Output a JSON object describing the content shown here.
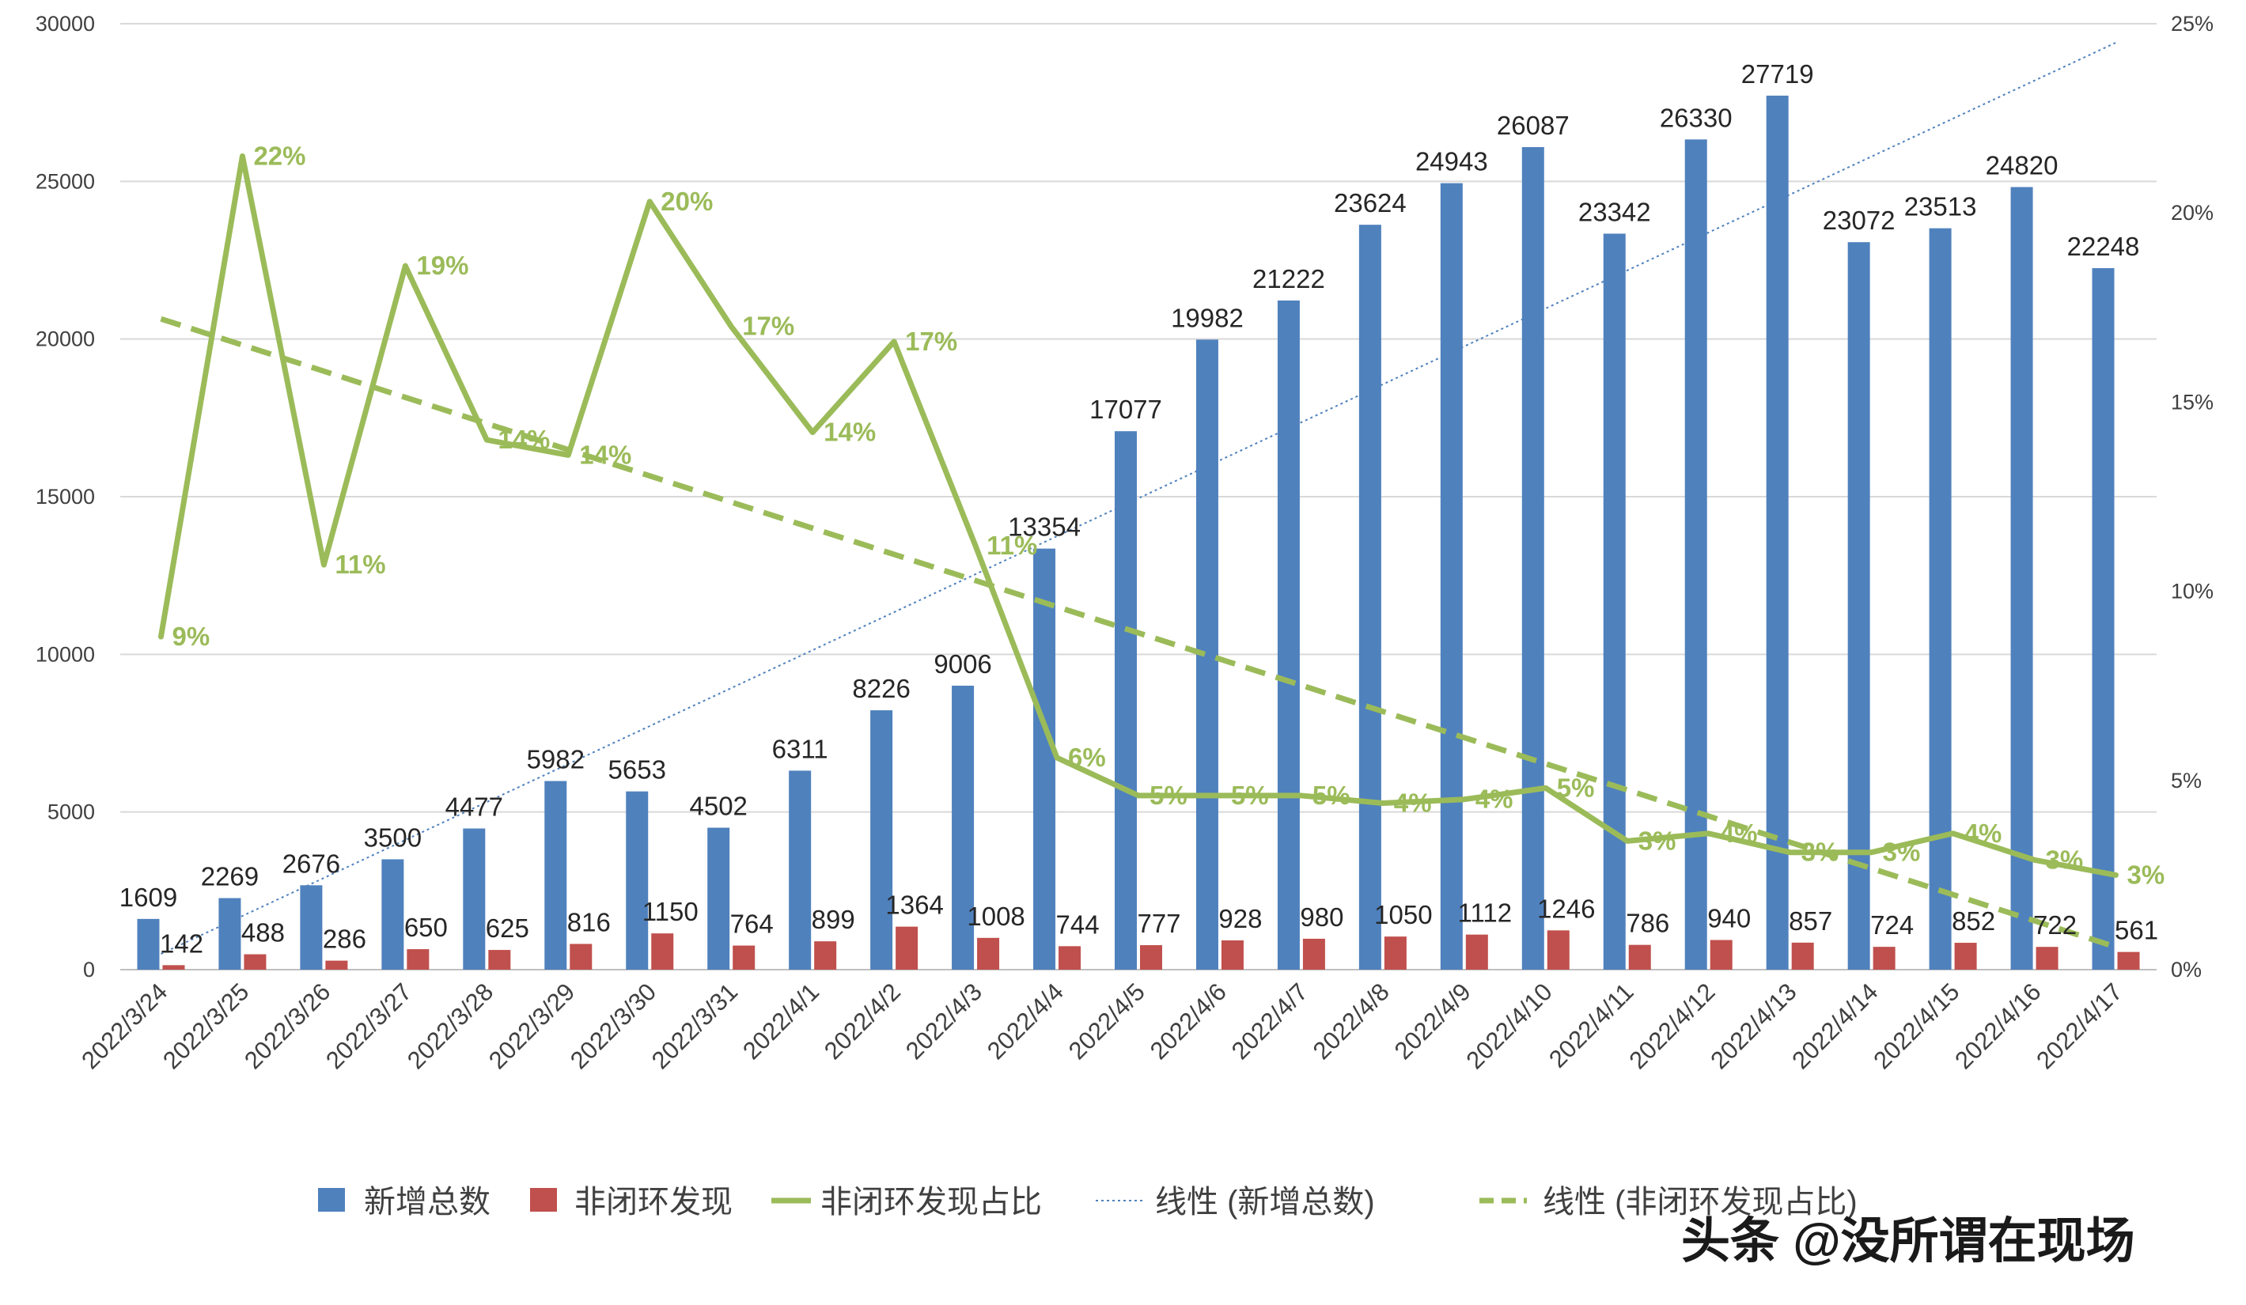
{
  "chart_data": {
    "type": "bar",
    "categories": [
      "2022/3/24",
      "2022/3/25",
      "2022/3/26",
      "2022/3/27",
      "2022/3/28",
      "2022/3/29",
      "2022/3/30",
      "2022/3/31",
      "2022/4/1",
      "2022/4/2",
      "2022/4/3",
      "2022/4/4",
      "2022/4/5",
      "2022/4/6",
      "2022/4/7",
      "2022/4/8",
      "2022/4/9",
      "2022/4/10",
      "2022/4/11",
      "2022/4/12",
      "2022/4/13",
      "2022/4/14",
      "2022/4/15",
      "2022/4/16",
      "2022/4/17"
    ],
    "series": [
      {
        "name": "新增总数",
        "kind": "bar",
        "axis": "left",
        "color": "#4f81bd",
        "values": [
          1609,
          2269,
          2676,
          3500,
          4477,
          5982,
          5653,
          4502,
          6311,
          8226,
          9006,
          13354,
          17077,
          19982,
          21222,
          23624,
          24943,
          26087,
          23342,
          26330,
          27719,
          23072,
          23513,
          24820,
          22248
        ]
      },
      {
        "name": "非闭环发现",
        "kind": "bar",
        "axis": "left",
        "color": "#c0504d",
        "values": [
          142,
          488,
          286,
          650,
          625,
          816,
          1150,
          764,
          899,
          1364,
          1008,
          744,
          777,
          928,
          980,
          1050,
          1112,
          1246,
          786,
          940,
          857,
          724,
          852,
          722,
          561
        ]
      },
      {
        "name": "非闭环发现占比",
        "kind": "line",
        "axis": "right",
        "color": "#9bbb59",
        "values": [
          8.8,
          21.5,
          10.7,
          18.6,
          14.0,
          13.6,
          20.3,
          17.0,
          14.2,
          16.6,
          11.2,
          5.6,
          4.6,
          4.6,
          4.6,
          4.4,
          4.5,
          4.8,
          3.4,
          3.6,
          3.1,
          3.1,
          3.6,
          2.9,
          2.5
        ],
        "labels": [
          "9%",
          "22%",
          "11%",
          "19%",
          "14%",
          "14%",
          "20%",
          "17%",
          "14%",
          "17%",
          "11%",
          "6%",
          "5%",
          "5%",
          "5%",
          "4%",
          "4%",
          "5%",
          "3%",
          "4%",
          "3%",
          "3%",
          "4%",
          "3%",
          "3%"
        ]
      },
      {
        "name": "线性 (新增总数)",
        "kind": "trendline",
        "axis": "left",
        "color": "#4f81bd",
        "style": "dotted",
        "from": 500,
        "to": 29400
      },
      {
        "name": "线性 (非闭环发现占比)",
        "kind": "trendline",
        "axis": "right",
        "color": "#9bbb59",
        "style": "dashed",
        "from": 17.2,
        "to": 0.6
      }
    ],
    "left_axis": {
      "min": 0,
      "max": 30000,
      "step": 5000,
      "ticks": [
        "0",
        "5000",
        "10000",
        "15000",
        "20000",
        "25000",
        "30000"
      ]
    },
    "right_axis": {
      "min": 0,
      "max": 25,
      "step": 5,
      "ticks": [
        "0%",
        "5%",
        "10%",
        "15%",
        "20%",
        "25%"
      ]
    },
    "grid": true,
    "legend_position": "bottom",
    "title": ""
  },
  "legend": [
    "新增总数",
    "非闭环发现",
    "非闭环发现占比",
    "线性 (新增总数)",
    "线性 (非闭环发现占比)"
  ],
  "watermark": "头条 @没所谓在现场"
}
